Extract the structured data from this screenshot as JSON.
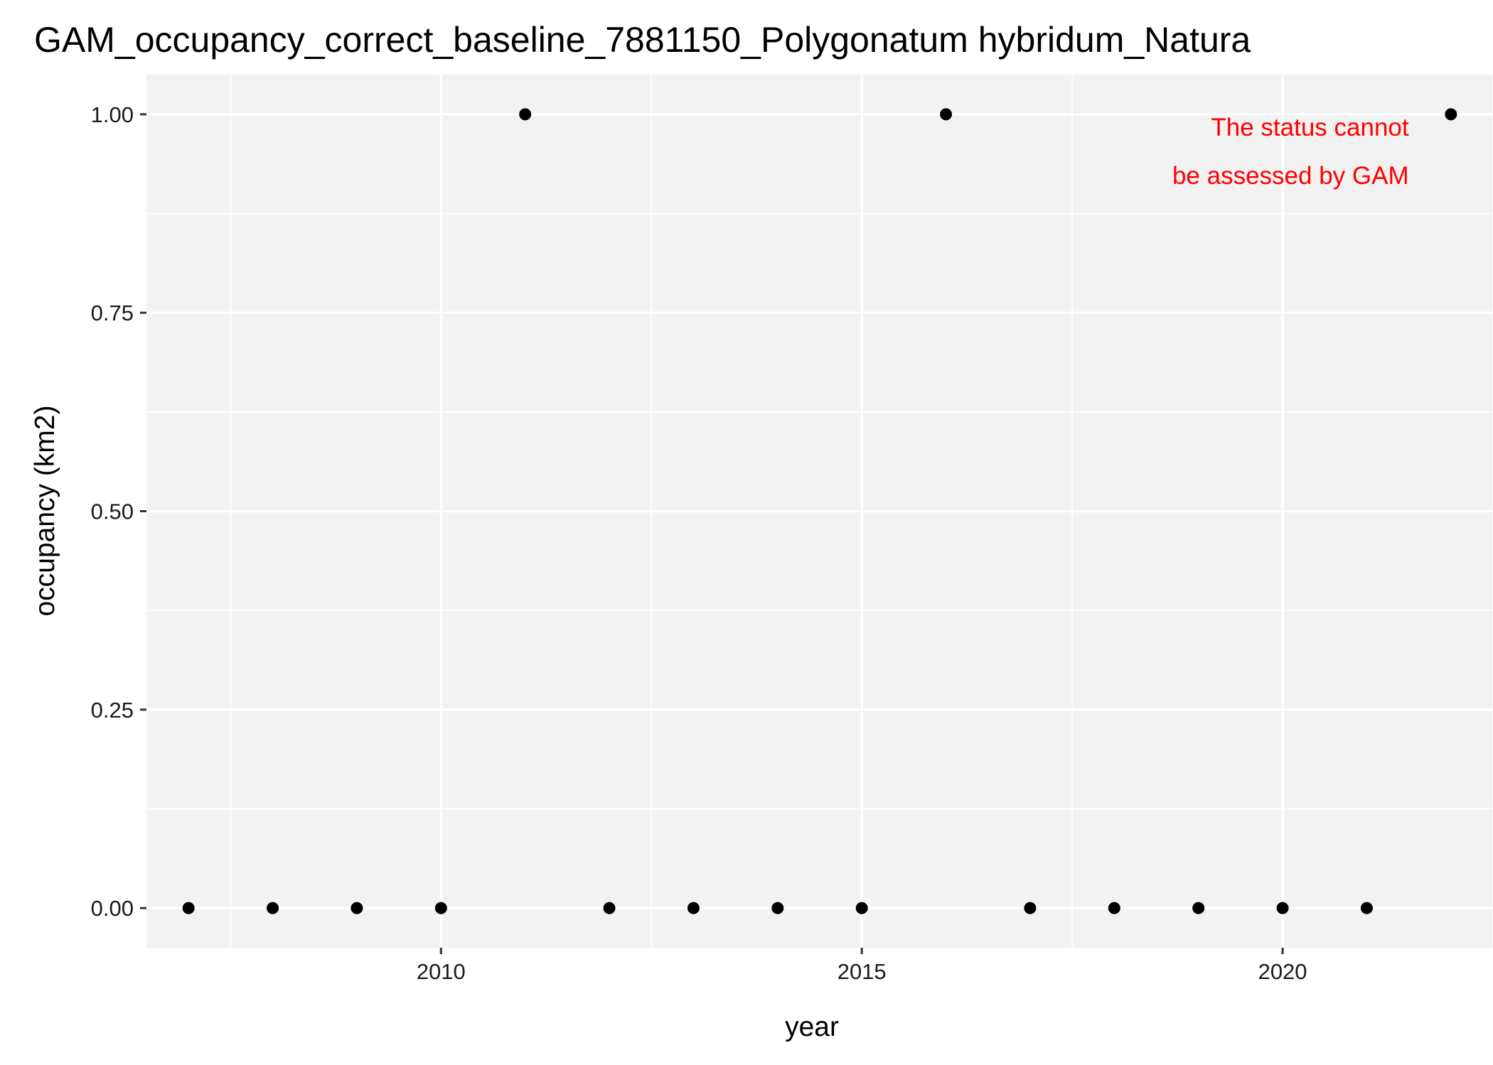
{
  "chart_data": {
    "type": "scatter",
    "title": "GAM_occupancy_correct_baseline_7881150_Polygonatum hybridum_Natura",
    "xlabel": "year",
    "ylabel": "occupancy (km2)",
    "xlim": [
      2006.5,
      2022.5
    ],
    "ylim": [
      -0.05,
      1.05
    ],
    "x_ticks": [
      2010,
      2015,
      2020
    ],
    "x_tick_labels": [
      "2010",
      "2015",
      "2020"
    ],
    "y_ticks": [
      0,
      0.25,
      0.5,
      0.75,
      1.0
    ],
    "y_tick_labels": [
      "0.00",
      "0.25",
      "0.50",
      "0.75",
      "1.00"
    ],
    "grid": true,
    "annotation": [
      "The status cannot",
      "be assessed by GAM"
    ],
    "annotation_color": "#ff0000",
    "panel_color": "#f2f2f2",
    "grid_color": "#ffffff",
    "point_color": "#000000",
    "points": [
      {
        "x": 2007,
        "y": 0
      },
      {
        "x": 2008,
        "y": 0
      },
      {
        "x": 2009,
        "y": 0
      },
      {
        "x": 2010,
        "y": 0
      },
      {
        "x": 2011,
        "y": 1
      },
      {
        "x": 2012,
        "y": 0
      },
      {
        "x": 2013,
        "y": 0
      },
      {
        "x": 2014,
        "y": 0
      },
      {
        "x": 2015,
        "y": 0
      },
      {
        "x": 2016,
        "y": 1
      },
      {
        "x": 2017,
        "y": 0
      },
      {
        "x": 2018,
        "y": 0
      },
      {
        "x": 2019,
        "y": 0
      },
      {
        "x": 2020,
        "y": 0
      },
      {
        "x": 2021,
        "y": 0
      },
      {
        "x": 2022,
        "y": 1
      }
    ]
  }
}
